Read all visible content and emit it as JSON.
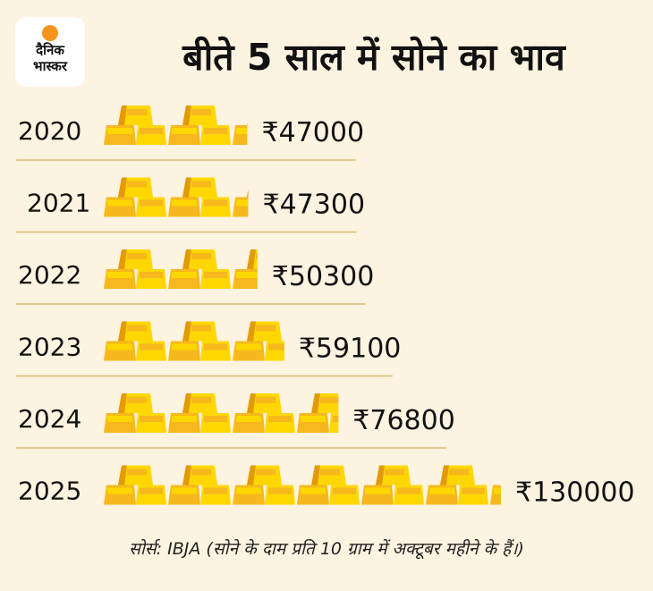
{
  "brand": {
    "line1": "दैनिक",
    "line2": "भास्कर",
    "sun_color": "#f7941d"
  },
  "header": {
    "title": "बीते 5 साल में सोने का भाव"
  },
  "footer": {
    "source": "सोर्स: IBJA (सोने के दाम प्रति 10 ग्राम में अक्टूबर महीने के हैं।)"
  },
  "colors": {
    "background": "#fdf3e1",
    "gold_light": "#ffd700",
    "gold_mid": "#f6b81c",
    "gold_dark": "#e39a0a",
    "divider": "#d9b978"
  },
  "chart_data": {
    "type": "bar",
    "title": "बीते 5 साल में सोने का भाव",
    "categories": [
      "2020",
      "2021",
      "2022",
      "2023",
      "2024",
      "2025"
    ],
    "values": [
      47000,
      47300,
      50300,
      59100,
      76800,
      130000
    ],
    "value_labels": [
      "₹47000",
      "₹47300",
      "₹50300",
      "₹59100",
      "₹76800",
      "₹130000"
    ],
    "unit": "₹",
    "xlabel": "",
    "ylabel": "",
    "grid": false,
    "orientation": "horizontal",
    "mark": "gold-bar-pictogram"
  }
}
